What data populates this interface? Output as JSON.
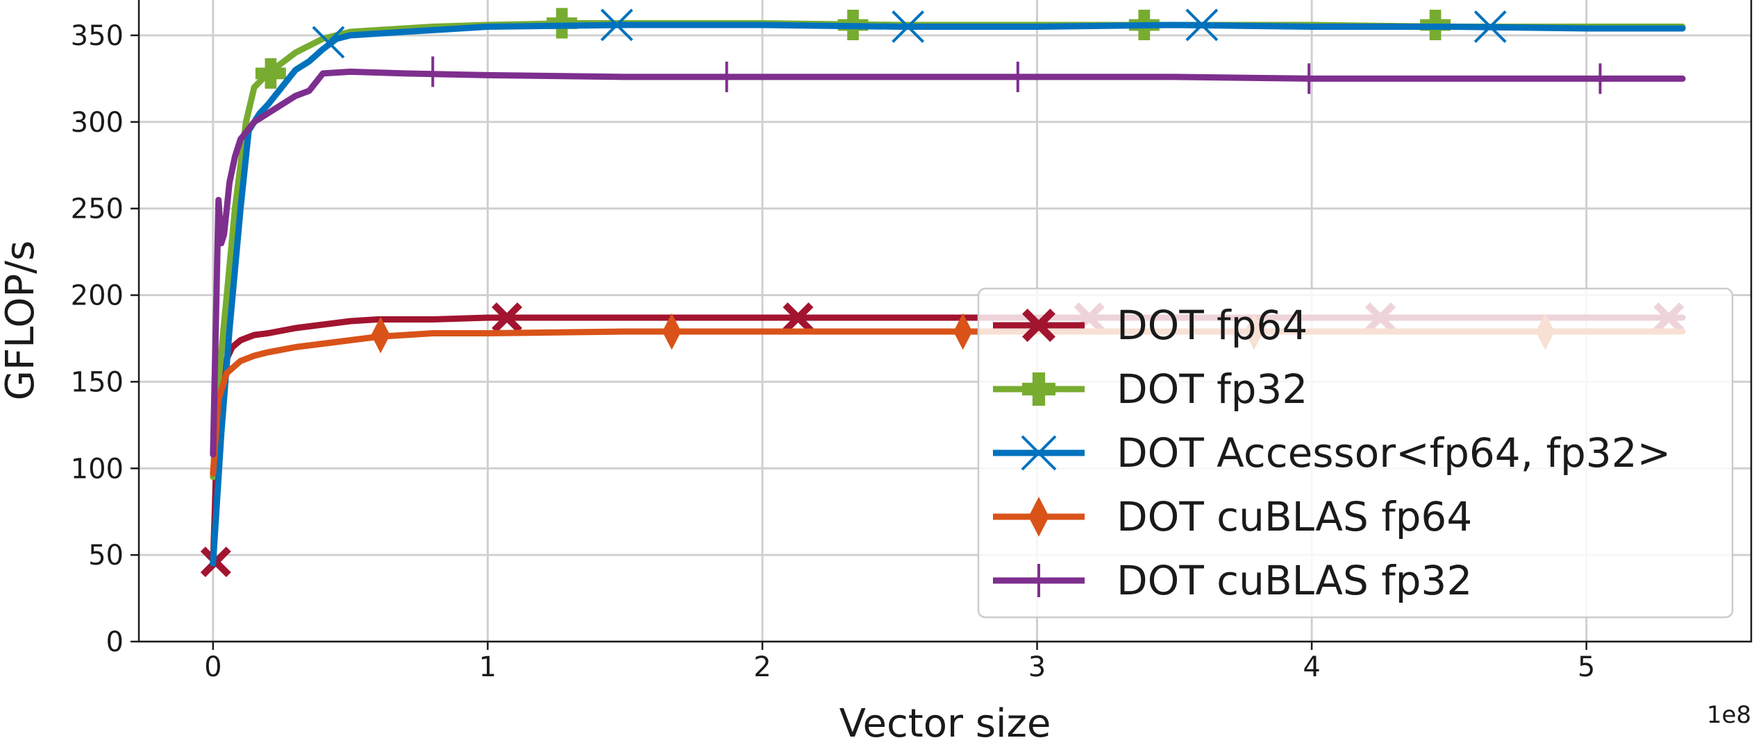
{
  "chart_data": {
    "type": "line",
    "title": "",
    "xlabel": "Vector size",
    "ylabel": "GFLOP/s",
    "x_offset_label": "1e8",
    "xlim": [
      -0.27,
      5.6
    ],
    "ylim": [
      0,
      372
    ],
    "x_ticks": [
      0,
      1,
      2,
      3,
      4,
      5
    ],
    "x_tick_labels": [
      "0",
      "1",
      "2",
      "3",
      "4",
      "5"
    ],
    "y_ticks": [
      0,
      50,
      100,
      150,
      200,
      250,
      300,
      350
    ],
    "y_tick_labels": [
      "0",
      "50",
      "100",
      "150",
      "200",
      "250",
      "300",
      "350"
    ],
    "grid": true,
    "legend_position": "center-right",
    "series": [
      {
        "name": "DOT fp64",
        "color": "#a2142f",
        "marker": "X",
        "x": [
          0.0,
          0.02,
          0.04,
          0.07,
          0.1,
          0.15,
          0.2,
          0.3,
          0.4,
          0.5,
          0.6,
          0.8,
          1.0,
          1.5,
          2.0,
          2.5,
          3.0,
          3.5,
          4.0,
          4.5,
          5.0,
          5.35
        ],
        "y": [
          45,
          140,
          160,
          170,
          174,
          177,
          178,
          181,
          183,
          185,
          186,
          186,
          187,
          187,
          187,
          187,
          187,
          187,
          187,
          187,
          187,
          187
        ],
        "marker_x": [
          0.01,
          1.07,
          2.13,
          3.19,
          4.25,
          5.3
        ],
        "marker_y": [
          46,
          187,
          187,
          187,
          187,
          187
        ]
      },
      {
        "name": "DOT fp32",
        "color": "#77ac30",
        "marker": "P",
        "x": [
          0.0,
          0.02,
          0.05,
          0.08,
          0.12,
          0.15,
          0.2,
          0.3,
          0.4,
          0.5,
          0.6,
          0.8,
          1.0,
          1.3,
          2.0,
          2.5,
          3.0,
          3.5,
          4.0,
          4.5,
          5.0,
          5.35
        ],
        "y": [
          95,
          150,
          200,
          250,
          300,
          320,
          328,
          340,
          348,
          352,
          353,
          355,
          356,
          357,
          357,
          356,
          356,
          356,
          356,
          355,
          355,
          355
        ],
        "marker_x": [
          0.21,
          1.27,
          2.33,
          3.39,
          4.45
        ],
        "marker_y": [
          328,
          357,
          356,
          356,
          356
        ]
      },
      {
        "name": "DOT Accessor<fp64, fp32>",
        "color": "#0072bd",
        "marker": "x",
        "x": [
          0.0,
          0.03,
          0.06,
          0.1,
          0.13,
          0.17,
          0.2,
          0.25,
          0.3,
          0.35,
          0.4,
          0.45,
          0.5,
          0.7,
          1.0,
          1.5,
          2.0,
          2.5,
          3.0,
          3.5,
          4.0,
          4.5,
          5.0,
          5.35
        ],
        "y": [
          45,
          120,
          180,
          250,
          295,
          305,
          310,
          320,
          330,
          335,
          342,
          348,
          350,
          352,
          355,
          356,
          356,
          355,
          355,
          356,
          355,
          355,
          354,
          354
        ],
        "marker_x": [
          0.42,
          1.47,
          2.53,
          3.6,
          4.65
        ],
        "marker_y": [
          346,
          356,
          355,
          356,
          355
        ]
      },
      {
        "name": "DOT cuBLAS fp64",
        "color": "#d95319",
        "marker": "d",
        "x": [
          0.0,
          0.02,
          0.05,
          0.1,
          0.15,
          0.2,
          0.3,
          0.4,
          0.5,
          0.6,
          0.8,
          1.0,
          1.5,
          2.0,
          2.5,
          3.0,
          3.5,
          4.0,
          4.5,
          5.0,
          5.35
        ],
        "y": [
          97,
          140,
          155,
          162,
          165,
          167,
          170,
          172,
          174,
          176,
          178,
          178,
          179,
          179,
          179,
          179,
          179,
          179,
          179,
          179,
          179
        ],
        "marker_x": [
          0.61,
          1.67,
          2.73,
          3.79,
          4.85
        ],
        "marker_y": [
          177,
          179,
          179,
          179,
          179
        ]
      },
      {
        "name": "DOT cuBLAS fp32",
        "color": "#7e2f8e",
        "marker": "|",
        "x": [
          0.0,
          0.02,
          0.03,
          0.04,
          0.05,
          0.06,
          0.08,
          0.1,
          0.15,
          0.2,
          0.3,
          0.35,
          0.4,
          0.5,
          0.7,
          1.0,
          1.5,
          2.0,
          2.5,
          3.0,
          3.5,
          4.0,
          4.5,
          5.0,
          5.35
        ],
        "y": [
          108,
          255,
          230,
          235,
          250,
          265,
          280,
          290,
          300,
          305,
          315,
          318,
          328,
          329,
          328,
          327,
          326,
          326,
          326,
          326,
          326,
          325,
          325,
          325,
          325
        ],
        "marker_x": [
          0.8,
          1.87,
          2.93,
          3.99,
          5.05
        ],
        "marker_y": [
          329,
          326,
          326,
          325,
          325
        ]
      }
    ]
  }
}
